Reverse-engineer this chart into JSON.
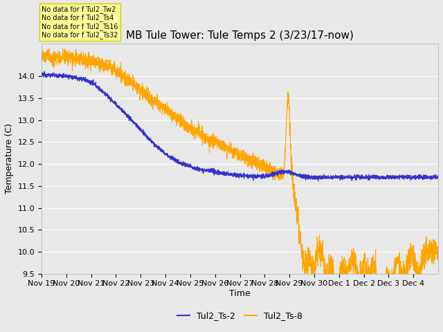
{
  "title": "MB Tule Tower: Tule Temps 2 (3/23/17-now)",
  "xlabel": "Time",
  "ylabel": "Temperature (C)",
  "ylim": [
    9.5,
    14.75
  ],
  "yticks": [
    9.5,
    10.0,
    10.5,
    11.0,
    11.5,
    12.0,
    12.5,
    13.0,
    13.5,
    14.0
  ],
  "xtick_labels": [
    "Nov 19",
    "Nov 20",
    "Nov 21",
    "Nov 22",
    "Nov 23",
    "Nov 24",
    "Nov 25",
    "Nov 26",
    "Nov 27",
    "Nov 28",
    "Nov 29",
    "Nov 30",
    "Dec 1",
    "Dec 2",
    "Dec 3",
    "Dec 4"
  ],
  "color_blue": "#3333cc",
  "color_orange": "#FFA500",
  "bg_color": "#e8e8e8",
  "plot_bg_color": "#e8e8e8",
  "legend_labels": [
    "Tul2_Ts-2",
    "Tul2_Ts-8"
  ],
  "no_data_texts": [
    "No data for f Tul2_Tw2",
    "No data for f Tul2_Ts4",
    "No data for f Tul2_Ts16",
    "No data for f Tul2_Ts32"
  ],
  "no_data_box_color": "#ffff99",
  "no_data_box_edge": "#cccc00",
  "title_fontsize": 11,
  "axis_label_fontsize": 9,
  "tick_fontsize": 8,
  "legend_fontsize": 9,
  "nodata_fontsize": 7
}
